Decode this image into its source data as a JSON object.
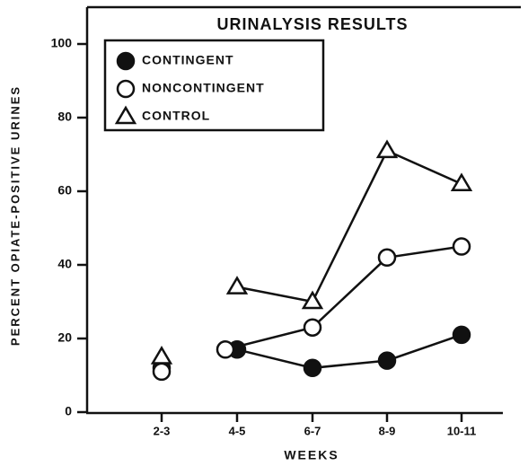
{
  "chart_data": {
    "type": "line",
    "title": "URINALYSIS RESULTS",
    "xlabel": "WEEKS",
    "ylabel": "PERCENT OPIATE-POSITIVE URINES",
    "categories": [
      "2-3",
      "4-5",
      "6-7",
      "8-9",
      "10-11"
    ],
    "series": [
      {
        "name": "CONTINGENT",
        "marker": "filled-circle",
        "color": "#111111",
        "values": [
          12,
          17,
          12,
          14,
          21
        ]
      },
      {
        "name": "NONCONTINGENT",
        "marker": "open-circle",
        "color": "#111111",
        "values": [
          11,
          17,
          23,
          42,
          45
        ]
      },
      {
        "name": "CONTROL",
        "marker": "open-triangle",
        "color": "#111111",
        "values": [
          15,
          34,
          30,
          71,
          62
        ]
      }
    ],
    "ylim": [
      0,
      100
    ],
    "yticks": [
      0,
      20,
      40,
      60,
      80,
      100
    ],
    "legend": "upper left",
    "grid": false
  }
}
